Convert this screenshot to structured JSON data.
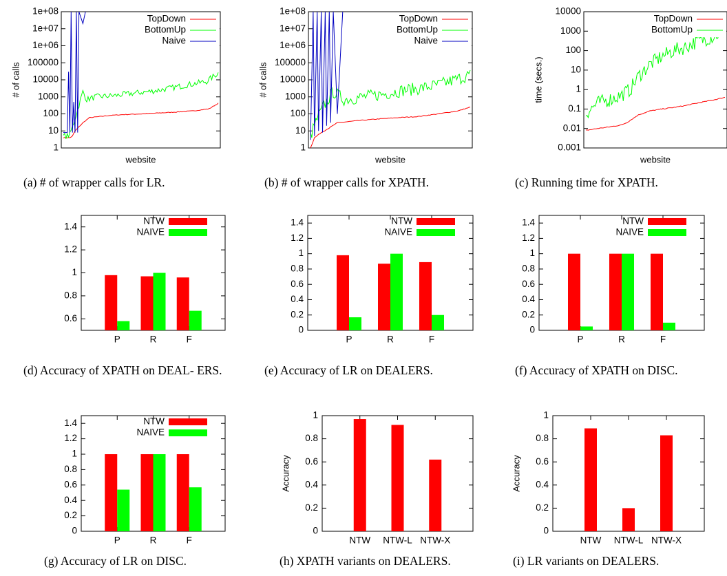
{
  "colors": {
    "red": "#ff0000",
    "green": "#00ff00",
    "blue": "#0000c0",
    "axis": "#000000"
  },
  "chart_data": [
    {
      "id": "a",
      "type": "line",
      "caption": "(a) # of wrapper calls for LR.",
      "xlabel": "website",
      "ylabel": "# of calls",
      "yscale": "log",
      "ylim": [
        1,
        100000000
      ],
      "yticks": [
        "1",
        "10",
        "100",
        "1000",
        "10000",
        "100000",
        "1e+06",
        "1e+07",
        "1e+08"
      ],
      "legend": {
        "position": "top-right",
        "entries": [
          "TopDown",
          "BottomUp",
          "Naive"
        ]
      },
      "n_points": 120,
      "series": [
        {
          "name": "TopDown",
          "color": "red",
          "values": [
            4,
            4,
            4,
            5,
            10,
            30,
            60,
            80,
            90,
            100,
            120,
            150,
            200,
            420
          ],
          "index": [
            0,
            3,
            5,
            7,
            9,
            15,
            20,
            35,
            45,
            60,
            80,
            100,
            112,
            119
          ]
        },
        {
          "name": "BottomUp",
          "color": "green",
          "values": [
            5,
            5,
            6,
            30,
            2000,
            700,
            1000,
            1200,
            1500,
            2000,
            3000,
            5000,
            8000,
            25000
          ],
          "index": [
            0,
            3,
            5,
            8,
            15,
            18,
            25,
            40,
            50,
            65,
            80,
            95,
            110,
            119
          ]
        },
        {
          "name": "Naive",
          "color": "blue",
          "values": [
            8,
            8,
            30000,
            8,
            100000000,
            8,
            500,
            8,
            100000000,
            8,
            100000000,
            20000000,
            100000000
          ],
          "index": [
            0,
            3,
            4,
            5,
            6,
            7,
            8,
            9,
            10,
            11,
            12,
            15,
            17
          ]
        }
      ]
    },
    {
      "id": "b",
      "type": "line",
      "caption": "(b) # of wrapper calls for XPATH.",
      "xlabel": "website",
      "ylabel": "# of calls",
      "yscale": "log",
      "ylim": [
        1,
        100000000
      ],
      "yticks": [
        "1",
        "10",
        "100",
        "1000",
        "10000",
        "100000",
        "1e+06",
        "1e+07",
        "1e+08"
      ],
      "legend": {
        "position": "top-right",
        "entries": [
          "TopDown",
          "BottomUp",
          "Naive"
        ]
      },
      "n_points": 120,
      "series": [
        {
          "name": "TopDown",
          "color": "red",
          "values": [
            1,
            4,
            8,
            15,
            30,
            40,
            50,
            60,
            70,
            100,
            150,
            250
          ],
          "index": [
            0,
            3,
            8,
            14,
            20,
            35,
            50,
            65,
            80,
            95,
            110,
            119
          ]
        },
        {
          "name": "BottomUp",
          "color": "green",
          "values": [
            5,
            50,
            300,
            2000,
            700,
            1000,
            1500,
            2500,
            3000,
            5000,
            10000,
            20000
          ],
          "index": [
            0,
            5,
            10,
            17,
            25,
            40,
            55,
            70,
            80,
            95,
            108,
            119
          ]
        },
        {
          "name": "Naive",
          "color": "blue",
          "values": [
            3,
            100000000,
            5,
            100000000,
            10,
            100000000,
            8,
            100000000,
            20,
            100000000,
            30,
            100000000,
            100,
            100000000
          ],
          "index": [
            0,
            2,
            3,
            5,
            6,
            8,
            9,
            11,
            12,
            14,
            15,
            17,
            20,
            24
          ]
        }
      ]
    },
    {
      "id": "c",
      "type": "line",
      "caption": "(c) Running time for XPATH.",
      "xlabel": "website",
      "ylabel": "time (secs.)",
      "yscale": "log",
      "ylim": [
        0.001,
        10000
      ],
      "yticks": [
        "0.001",
        "0.01",
        "0.1",
        "1",
        "10",
        "100",
        "1000",
        "10000"
      ],
      "legend": {
        "position": "top-right",
        "entries": [
          "TopDown",
          "BottomUp"
        ]
      },
      "n_points": 120,
      "series": [
        {
          "name": "TopDown",
          "color": "red",
          "values": [
            0.008,
            0.01,
            0.012,
            0.015,
            0.02,
            0.05,
            0.08,
            0.1,
            0.12,
            0.15,
            0.2,
            0.3,
            0.4
          ],
          "index": [
            0,
            10,
            20,
            30,
            35,
            45,
            55,
            65,
            75,
            85,
            95,
            110,
            119
          ]
        },
        {
          "name": "BottomUp",
          "color": "green",
          "values": [
            0.06,
            0.2,
            0.3,
            0.5,
            1,
            5,
            20,
            50,
            100,
            150,
            300,
            500,
            1000
          ],
          "index": [
            0,
            10,
            20,
            30,
            38,
            45,
            55,
            65,
            75,
            85,
            95,
            108,
            119
          ]
        }
      ]
    },
    {
      "id": "d",
      "type": "bar",
      "caption": "(d) Accuracy of XPATH on DEAL- ERS.",
      "categories": [
        "P",
        "R",
        "F"
      ],
      "ylim": [
        0.5,
        1.5
      ],
      "yticks": [
        "0.6",
        "0.8",
        "1",
        "1.2",
        "1.4"
      ],
      "legend": {
        "position": "top-right",
        "entries": [
          "NTW",
          "NAIVE"
        ]
      },
      "series": [
        {
          "name": "NTW",
          "color": "red",
          "values": [
            0.98,
            0.97,
            0.96
          ]
        },
        {
          "name": "NAIVE",
          "color": "green",
          "values": [
            0.58,
            1.0,
            0.67
          ]
        }
      ]
    },
    {
      "id": "e",
      "type": "bar",
      "caption": "(e) Accuracy of LR on DEALERS.",
      "categories": [
        "P",
        "R",
        "F"
      ],
      "ylim": [
        0,
        1.5
      ],
      "yticks": [
        "0",
        "0.2",
        "0.4",
        "0.6",
        "0.8",
        "1",
        "1.2",
        "1.4"
      ],
      "legend": {
        "position": "top-right",
        "entries": [
          "NTW",
          "NAIVE"
        ]
      },
      "series": [
        {
          "name": "NTW",
          "color": "red",
          "values": [
            0.98,
            0.87,
            0.89
          ]
        },
        {
          "name": "NAIVE",
          "color": "green",
          "values": [
            0.17,
            1.0,
            0.2
          ]
        }
      ]
    },
    {
      "id": "f",
      "type": "bar",
      "caption": "(f) Accuracy of XPATH on DISC.",
      "categories": [
        "P",
        "R",
        "F"
      ],
      "ylim": [
        0,
        1.5
      ],
      "yticks": [
        "0",
        "0.2",
        "0.4",
        "0.6",
        "0.8",
        "1",
        "1.2",
        "1.4"
      ],
      "legend": {
        "position": "top-right",
        "entries": [
          "NTW",
          "NAIVE"
        ]
      },
      "series": [
        {
          "name": "NTW",
          "color": "red",
          "values": [
            1.0,
            1.0,
            1.0
          ]
        },
        {
          "name": "NAIVE",
          "color": "green",
          "values": [
            0.05,
            1.0,
            0.1
          ]
        }
      ]
    },
    {
      "id": "g",
      "type": "bar",
      "caption": "(g) Accuracy of LR on DISC.",
      "categories": [
        "P",
        "R",
        "F"
      ],
      "ylim": [
        0,
        1.5
      ],
      "yticks": [
        "0",
        "0.2",
        "0.4",
        "0.6",
        "0.8",
        "1",
        "1.2",
        "1.4"
      ],
      "legend": {
        "position": "top-right",
        "entries": [
          "NTW",
          "NAIVE"
        ]
      },
      "series": [
        {
          "name": "NTW",
          "color": "red",
          "values": [
            1.0,
            1.0,
            1.0
          ]
        },
        {
          "name": "NAIVE",
          "color": "green",
          "values": [
            0.54,
            1.0,
            0.57
          ]
        }
      ]
    },
    {
      "id": "h",
      "type": "bar",
      "caption": "(h) XPATH variants on DEALERS.",
      "ylabel": "Accuracy",
      "categories": [
        "NTW",
        "NTW-L",
        "NTW-X"
      ],
      "ylim": [
        0,
        1
      ],
      "yticks": [
        "0",
        "0.2",
        "0.4",
        "0.6",
        "0.8",
        "1"
      ],
      "series": [
        {
          "color": "red",
          "values": [
            0.97,
            0.92,
            0.62
          ]
        }
      ]
    },
    {
      "id": "i",
      "type": "bar",
      "caption": "(i) LR variants on DEALERS.",
      "ylabel": "Accuracy",
      "categories": [
        "NTW",
        "NTW-L",
        "NTW-X"
      ],
      "ylim": [
        0,
        1
      ],
      "yticks": [
        "0",
        "0.2",
        "0.4",
        "0.6",
        "0.8",
        "1"
      ],
      "series": [
        {
          "color": "red",
          "values": [
            0.89,
            0.2,
            0.83
          ]
        }
      ]
    }
  ]
}
